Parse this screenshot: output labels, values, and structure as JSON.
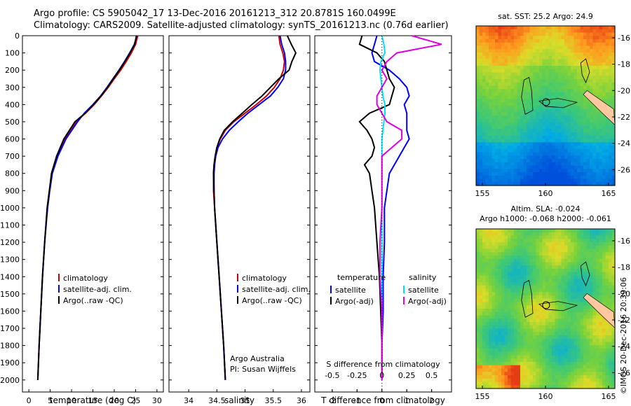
{
  "header": {
    "line1": "Argo profile: CS 5905042_17 13-Dec-2016 20161213_312 20.8781S 160.0499E",
    "line2": "Climatology: CARS2009. Satellite-adjusted climatology: synTS_20161213.nc (0.76d earlier)"
  },
  "colors": {
    "climatology": "#d00000",
    "satellite": "#0000ff",
    "argo": "#000000",
    "salinity_sat": "#00e0ff",
    "salinity_argo": "#e000e0",
    "land": "#ffc8a0"
  },
  "depth_axis": {
    "ticks": [
      0,
      100,
      200,
      300,
      400,
      500,
      600,
      700,
      800,
      900,
      1000,
      1100,
      1200,
      1300,
      1400,
      1500,
      1600,
      1700,
      1800,
      1900,
      2000
    ],
    "range": [
      0,
      2070
    ]
  },
  "chart_data": [
    {
      "type": "line",
      "name": "temperature",
      "xlabel": "temperature (deg C)",
      "xlim": [
        -1.5,
        31.5
      ],
      "xticks": [
        0,
        5,
        10,
        15,
        20,
        25,
        30
      ],
      "ylim": [
        0,
        2070
      ],
      "y_reversed": true,
      "legend": [
        "climatology",
        "satellite-adj. clim.",
        "Argo(..raw -QC)"
      ],
      "depth": [
        0,
        50,
        100,
        150,
        200,
        250,
        300,
        350,
        400,
        450,
        500,
        600,
        700,
        800,
        900,
        1000,
        1200,
        1400,
        1600,
        1800,
        2000
      ],
      "series": [
        {
          "name": "climatology",
          "values": [
            25.5,
            25.0,
            24.0,
            22.8,
            21.5,
            20.0,
            18.6,
            17.0,
            15.3,
            13.3,
            11.0,
            8.4,
            6.6,
            5.4,
            4.8,
            4.3,
            3.7,
            3.2,
            2.8,
            2.4,
            2.1
          ]
        },
        {
          "name": "satellite-adj. clim.",
          "values": [
            25.3,
            24.7,
            23.6,
            22.4,
            21.1,
            19.7,
            18.3,
            16.8,
            15.0,
            13.0,
            11.4,
            8.7,
            6.8,
            5.5,
            4.9,
            4.4,
            3.7,
            3.2,
            2.8,
            2.4,
            2.1
          ]
        },
        {
          "name": "Argo(..raw -QC)",
          "values": [
            25.2,
            24.8,
            23.7,
            22.5,
            21.2,
            19.8,
            18.4,
            16.9,
            15.1,
            13.2,
            10.8,
            8.2,
            6.5,
            5.3,
            4.8,
            4.3,
            3.7,
            3.2,
            2.8,
            2.4,
            2.1
          ]
        }
      ]
    },
    {
      "type": "line",
      "name": "salinity",
      "xlabel": "salinity",
      "xlim": [
        33.65,
        36.15
      ],
      "xticks": [
        34,
        34.5,
        35,
        35.5,
        36
      ],
      "ylim": [
        0,
        2070
      ],
      "y_reversed": true,
      "legend": [
        "climatology",
        "satellite-adj. clim.",
        "Argo(..raw -QC)"
      ],
      "depth": [
        0,
        50,
        100,
        150,
        200,
        250,
        300,
        350,
        400,
        450,
        500,
        550,
        600,
        650,
        700,
        750,
        800,
        900,
        1000,
        1200,
        1400,
        1600,
        1800,
        2000
      ],
      "series": [
        {
          "name": "climatology",
          "values": [
            35.6,
            35.62,
            35.67,
            35.7,
            35.68,
            35.62,
            35.52,
            35.38,
            35.2,
            35.0,
            34.8,
            34.65,
            34.56,
            34.5,
            34.47,
            34.45,
            34.44,
            34.44,
            34.46,
            34.5,
            34.54,
            34.58,
            34.62,
            34.65
          ]
        },
        {
          "name": "satellite-adj. clim.",
          "values": [
            35.62,
            35.65,
            35.7,
            35.72,
            35.72,
            35.68,
            35.58,
            35.45,
            35.25,
            35.05,
            34.88,
            34.72,
            34.6,
            34.52,
            34.48,
            34.46,
            34.45,
            34.45,
            34.46,
            34.5,
            34.54,
            34.58,
            34.62,
            34.65
          ]
        },
        {
          "name": "Argo(..raw -QC)",
          "values": [
            35.75,
            35.82,
            35.9,
            35.83,
            35.78,
            35.6,
            35.45,
            35.3,
            35.12,
            34.95,
            34.78,
            34.63,
            34.55,
            34.5,
            34.47,
            34.45,
            34.44,
            34.45,
            34.46,
            34.5,
            34.54,
            34.58,
            34.62,
            34.65
          ]
        }
      ]
    },
    {
      "type": "line",
      "name": "difference",
      "xlabel": "T difference from climatology",
      "xticks": [
        -2,
        -1,
        0,
        1,
        2
      ],
      "xlim": [
        -2.7,
        2.8
      ],
      "top_xlabel": "S difference from climatology",
      "top_xticks_labels": [
        "-0.5",
        "-0.25",
        "0",
        "0.25",
        "0.5"
      ],
      "top_xticks": [
        -0.5,
        -0.25,
        0,
        0.25,
        0.5
      ],
      "top_xlim": [
        -0.675,
        0.7
      ],
      "ylim": [
        0,
        2070
      ],
      "y_reversed": true,
      "legend_temperature_title": "temperature",
      "legend_salinity_title": "salinity",
      "legend_temperature": [
        "satellite",
        "Argo(-adj)"
      ],
      "legend_salinity": [
        "satellite",
        "Argo(-adj)"
      ],
      "depth": [
        0,
        50,
        100,
        150,
        200,
        250,
        300,
        350,
        400,
        450,
        500,
        550,
        600,
        650,
        700,
        750,
        800,
        900,
        1000,
        1200,
        1400,
        1600,
        1800,
        2000
      ],
      "series": [
        {
          "name": "T satellite",
          "values": [
            -0.2,
            -0.3,
            -0.4,
            -0.3,
            0.3,
            0.7,
            1.0,
            1.1,
            0.9,
            1.0,
            1.0,
            1.0,
            1.1,
            0.9,
            0.7,
            0.5,
            0.3,
            0.2,
            0.1,
            0.1,
            0.05,
            0.05,
            0.0,
            0.0
          ]
        },
        {
          "name": "T Argo(-adj)",
          "values": [
            -0.8,
            -0.9,
            -0.2,
            0.1,
            0.2,
            0.3,
            0.5,
            0.4,
            0.3,
            -0.5,
            -0.9,
            -0.6,
            -0.4,
            -0.3,
            -0.4,
            -0.7,
            -0.5,
            -0.4,
            -0.3,
            -0.2,
            -0.1,
            -0.05,
            0.0,
            0.0
          ]
        },
        {
          "name": "S satellite",
          "values": [
            0.0,
            0.02,
            0.03,
            -0.01,
            -0.02,
            -0.01,
            0.0,
            0.01,
            0.03,
            0.03,
            0.02,
            0.01,
            0.0,
            0.0,
            0.0,
            0.0,
            0.0,
            0.0,
            0.0,
            0.0,
            0.0,
            0.0,
            0.0,
            0.0
          ]
        },
        {
          "name": "S Argo(-adj)",
          "values": [
            0.3,
            0.6,
            0.15,
            0.05,
            0.0,
            0.05,
            0.0,
            -0.05,
            -0.05,
            0.0,
            0.05,
            0.2,
            0.2,
            0.1,
            0.0,
            0.0,
            0.0,
            0.0,
            0.0,
            -0.02,
            -0.02,
            0.0,
            0.0,
            0.0
          ]
        }
      ]
    },
    {
      "type": "heatmap",
      "name": "sst-map",
      "title": "sat. SST: 25.2  Argo: 24.9",
      "xticks": [
        155,
        160,
        165
      ],
      "yticks": [
        -16,
        -18,
        -20,
        -22,
        -24,
        -26
      ],
      "xlim": [
        154.5,
        165.5
      ],
      "ylim": [
        -27.2,
        -15.1
      ],
      "argo_position": [
        160.05,
        -20.88
      ]
    },
    {
      "type": "heatmap",
      "name": "sla-map",
      "title_line1": "Altim. SLA: -0.024",
      "title_line2": "Argo h1000: -0.068 h2000: -0.061",
      "xticks": [
        155,
        160,
        165
      ],
      "yticks": [
        -16,
        -18,
        -20,
        -22,
        -24,
        -26
      ],
      "xlim": [
        154.5,
        165.5
      ],
      "ylim": [
        -27.2,
        -15.1
      ],
      "argo_position": [
        160.05,
        -20.88
      ]
    }
  ],
  "annotations": {
    "salinity_footer_line1": "Argo Australia",
    "salinity_footer_line2": "PI: Susan Wijffels",
    "timestamp": "©IMOS 20-Dec-2016 20:39:06"
  }
}
